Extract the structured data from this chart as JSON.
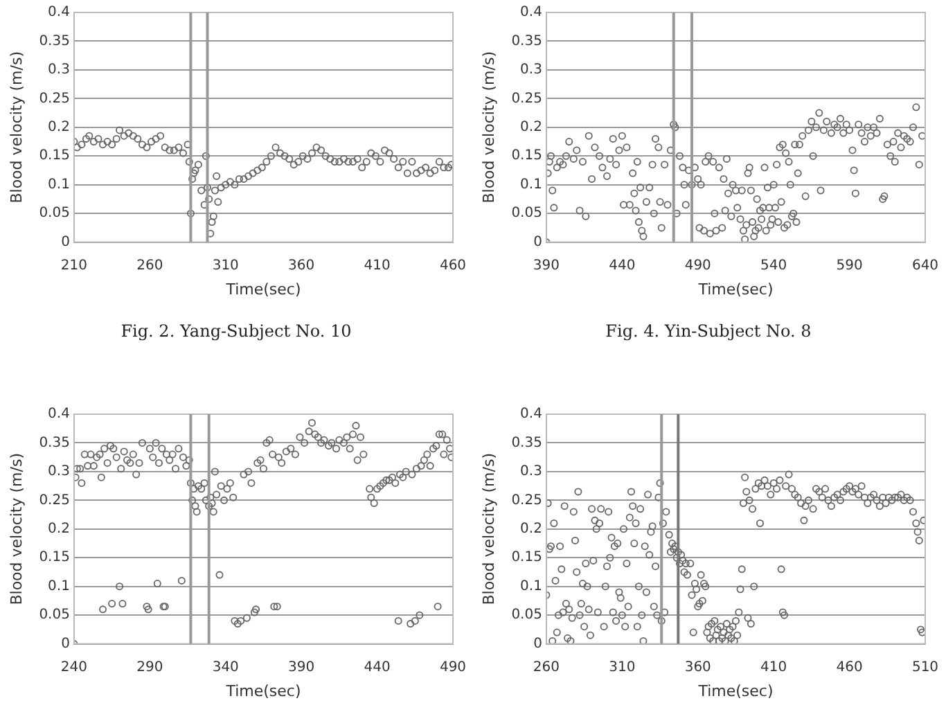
{
  "chart_data": [
    {
      "type": "scatter",
      "title": "Fig. 2. Yang-Subject No. 10",
      "xlabel": "Time(sec)",
      "ylabel": "Blood velocity (m/s)",
      "xlim": [
        210,
        460
      ],
      "xticks": [
        210,
        260,
        310,
        360,
        410,
        460
      ],
      "ylim": [
        0,
        0.4
      ],
      "yticks": [
        0,
        0.05,
        0.1,
        0.15,
        0.2,
        0.25,
        0.3,
        0.35,
        0.4
      ],
      "grid": "y",
      "marker": "circle",
      "color": "#666666",
      "ref_lines": [
        {
          "axis": "x",
          "value": 287,
          "color": "#999999"
        },
        {
          "axis": "x",
          "value": 298,
          "color": "#999999"
        }
      ],
      "x": [
        210,
        212,
        215,
        218,
        220,
        223,
        226,
        229,
        232,
        235,
        238,
        240,
        243,
        246,
        249,
        252,
        255,
        258,
        261,
        264,
        267,
        270,
        273,
        276,
        279,
        282,
        285,
        286,
        287,
        288,
        289,
        290,
        292,
        294,
        296,
        297,
        298,
        299,
        300,
        301,
        302,
        303,
        304,
        305,
        307,
        310,
        313,
        316,
        319,
        322,
        325,
        328,
        331,
        334,
        337,
        340,
        343,
        346,
        349,
        352,
        355,
        358,
        361,
        364,
        367,
        370,
        373,
        376,
        379,
        382,
        385,
        388,
        391,
        394,
        397,
        400,
        403,
        406,
        409,
        412,
        415,
        418,
        421,
        424,
        427,
        430,
        433,
        436,
        439,
        442,
        445,
        448,
        451,
        454,
        457,
        459
      ],
      "values": [
        0.175,
        0.165,
        0.17,
        0.18,
        0.185,
        0.175,
        0.18,
        0.17,
        0.175,
        0.17,
        0.18,
        0.195,
        0.185,
        0.19,
        0.185,
        0.18,
        0.17,
        0.165,
        0.175,
        0.18,
        0.185,
        0.165,
        0.16,
        0.16,
        0.165,
        0.155,
        0.17,
        0.14,
        0.05,
        0.11,
        0.12,
        0.125,
        0.135,
        0.09,
        0.065,
        0.15,
        0.095,
        0.075,
        0.015,
        0.035,
        0.045,
        0.09,
        0.115,
        0.07,
        0.095,
        0.1,
        0.105,
        0.1,
        0.11,
        0.11,
        0.115,
        0.12,
        0.125,
        0.13,
        0.14,
        0.15,
        0.165,
        0.155,
        0.15,
        0.145,
        0.135,
        0.14,
        0.15,
        0.145,
        0.155,
        0.165,
        0.16,
        0.15,
        0.145,
        0.14,
        0.14,
        0.145,
        0.14,
        0.14,
        0.145,
        0.13,
        0.14,
        0.155,
        0.15,
        0.14,
        0.16,
        0.155,
        0.145,
        0.13,
        0.14,
        0.12,
        0.14,
        0.12,
        0.125,
        0.13,
        0.12,
        0.125,
        0.14,
        0.13,
        0.13,
        0.135
      ]
    },
    {
      "type": "scatter",
      "title": "Fig. 4. Yin-Subject No. 8",
      "xlabel": "Time(sec)",
      "ylabel": "Blood velocity (m/s)",
      "xlim": [
        390,
        640
      ],
      "xticks": [
        390,
        440,
        490,
        540,
        590,
        640
      ],
      "ylim": [
        0,
        0.4
      ],
      "yticks": [
        0,
        0.05,
        0.1,
        0.15,
        0.2,
        0.25,
        0.3,
        0.35,
        0.4
      ],
      "grid": "y",
      "marker": "circle",
      "color": "#666666",
      "ref_lines": [
        {
          "axis": "x",
          "value": 474,
          "color": "#999999"
        },
        {
          "axis": "x",
          "value": 486,
          "color": "#999999"
        }
      ],
      "x": [
        390,
        391,
        392,
        393,
        394,
        395,
        397,
        399,
        401,
        403,
        405,
        408,
        410,
        412,
        414,
        416,
        418,
        420,
        422,
        425,
        427,
        430,
        432,
        434,
        436,
        438,
        440,
        441,
        443,
        445,
        447,
        448,
        449,
        450,
        451,
        452,
        453,
        454,
        456,
        458,
        460,
        461,
        462,
        464,
        465,
        466,
        468,
        470,
        472,
        474,
        475,
        476,
        478,
        480,
        481,
        482,
        484,
        486,
        488,
        490,
        491,
        492,
        494,
        495,
        497,
        498,
        500,
        501,
        502,
        504,
        506,
        507,
        508,
        509,
        510,
        512,
        513,
        515,
        516,
        518,
        519,
        520,
        521,
        522,
        523,
        524,
        525,
        526,
        527,
        528,
        529,
        530,
        531,
        532,
        533,
        534,
        535,
        536,
        537,
        538,
        539,
        540,
        541,
        542,
        543,
        544,
        545,
        546,
        547,
        548,
        549,
        550,
        551,
        552,
        553,
        554,
        555,
        556,
        557,
        559,
        561,
        563,
        565,
        566,
        568,
        570,
        571,
        573,
        575,
        578,
        580,
        582,
        584,
        586,
        588,
        590,
        592,
        593,
        594,
        596,
        598,
        600,
        602,
        604,
        606,
        608,
        610,
        612,
        613,
        615,
        617,
        619,
        620,
        622,
        624,
        626,
        628,
        630,
        632,
        634,
        636,
        638
      ],
      "values": [
        0.0,
        0.12,
        0.14,
        0.15,
        0.09,
        0.06,
        0.13,
        0.14,
        0.135,
        0.15,
        0.175,
        0.145,
        0.16,
        0.055,
        0.14,
        0.045,
        0.185,
        0.11,
        0.165,
        0.15,
        0.13,
        0.115,
        0.145,
        0.18,
        0.135,
        0.16,
        0.185,
        0.065,
        0.165,
        0.065,
        0.12,
        0.085,
        0.055,
        0.14,
        0.035,
        0.095,
        0.02,
        0.01,
        0.07,
        0.095,
        0.135,
        0.05,
        0.18,
        0.165,
        0.07,
        0.025,
        0.135,
        0.065,
        0.16,
        0.205,
        0.2,
        0.05,
        0.15,
        0.13,
        0.1,
        0.065,
        0.125,
        0.1,
        0.13,
        0.11,
        0.025,
        0.1,
        0.02,
        0.14,
        0.15,
        0.015,
        0.14,
        0.05,
        0.02,
        0.13,
        0.025,
        0.11,
        0.055,
        0.145,
        0.085,
        0.045,
        0.1,
        0.09,
        0.06,
        0.04,
        0.09,
        0.02,
        0.005,
        0.03,
        0.12,
        0.13,
        0.09,
        0.035,
        0.01,
        0.02,
        0.075,
        0.025,
        0.055,
        0.04,
        0.06,
        0.13,
        0.02,
        0.095,
        0.06,
        0.03,
        0.04,
        0.1,
        0.06,
        0.135,
        0.035,
        0.165,
        0.07,
        0.17,
        0.025,
        0.155,
        0.03,
        0.14,
        0.1,
        0.045,
        0.05,
        0.17,
        0.035,
        0.12,
        0.17,
        0.185,
        0.08,
        0.195,
        0.21,
        0.15,
        0.2,
        0.225,
        0.09,
        0.195,
        0.21,
        0.19,
        0.205,
        0.2,
        0.215,
        0.19,
        0.205,
        0.195,
        0.16,
        0.125,
        0.085,
        0.205,
        0.19,
        0.175,
        0.2,
        0.185,
        0.2,
        0.19,
        0.215,
        0.075,
        0.08,
        0.17,
        0.15,
        0.175,
        0.14,
        0.19,
        0.165,
        0.185,
        0.18,
        0.175,
        0.2,
        0.235,
        0.135,
        0.185
      ]
    },
    {
      "type": "scatter",
      "xlabel": "Time(sec)",
      "ylabel": "Blood velocity (m/s)",
      "xlim": [
        240,
        490
      ],
      "xticks": [
        240,
        290,
        340,
        390,
        440,
        490
      ],
      "ylim": [
        0,
        0.4
      ],
      "yticks": [
        0,
        0.05,
        0.1,
        0.15,
        0.2,
        0.25,
        0.3,
        0.35,
        0.4
      ],
      "grid": "y",
      "marker": "circle",
      "color": "#666666",
      "ref_lines": [
        {
          "axis": "x",
          "value": 317,
          "color": "#999999"
        },
        {
          "axis": "x",
          "value": 329,
          "color": "#999999"
        }
      ],
      "x": [
        240,
        241,
        242,
        244,
        245,
        247,
        249,
        251,
        253,
        255,
        257,
        258,
        259,
        260,
        262,
        264,
        265,
        266,
        268,
        270,
        271,
        272,
        273,
        275,
        277,
        279,
        281,
        283,
        285,
        288,
        289,
        290,
        292,
        294,
        295,
        296,
        298,
        299,
        300,
        301,
        303,
        305,
        307,
        309,
        311,
        312,
        314,
        316,
        317,
        318,
        319,
        320,
        321,
        322,
        324,
        326,
        327,
        329,
        330,
        331,
        332,
        333,
        334,
        336,
        337,
        339,
        341,
        343,
        345,
        346,
        348,
        350,
        352,
        354,
        355,
        357,
        359,
        360,
        361,
        363,
        365,
        367,
        369,
        371,
        372,
        374,
        375,
        377,
        380,
        383,
        386,
        389,
        392,
        395,
        397,
        399,
        401,
        403,
        405,
        408,
        410,
        413,
        415,
        418,
        420,
        422,
        424,
        426,
        427,
        429,
        431,
        435,
        436,
        438,
        440,
        442,
        444,
        446,
        448,
        450,
        452,
        454,
        455,
        457,
        459,
        462,
        463,
        465,
        466,
        468,
        469,
        471,
        473,
        475,
        477,
        479,
        480,
        481,
        483,
        484,
        486,
        488,
        489
      ],
      "values": [
        0,
        0.29,
        0.305,
        0.305,
        0.28,
        0.33,
        0.31,
        0.33,
        0.31,
        0.325,
        0.33,
        0.29,
        0.06,
        0.34,
        0.315,
        0.345,
        0.07,
        0.34,
        0.325,
        0.1,
        0.305,
        0.07,
        0.335,
        0.32,
        0.315,
        0.33,
        0.295,
        0.315,
        0.35,
        0.065,
        0.06,
        0.34,
        0.325,
        0.35,
        0.105,
        0.315,
        0.34,
        0.065,
        0.065,
        0.33,
        0.32,
        0.33,
        0.305,
        0.34,
        0.11,
        0.325,
        0.31,
        0.32,
        0.28,
        0.25,
        0.27,
        0.24,
        0.23,
        0.275,
        0.27,
        0.28,
        0.25,
        0.24,
        0.255,
        0.245,
        0.23,
        0.3,
        0.26,
        0.12,
        0.275,
        0.25,
        0.27,
        0.28,
        0.255,
        0.04,
        0.035,
        0.04,
        0.295,
        0.045,
        0.3,
        0.28,
        0.055,
        0.06,
        0.315,
        0.32,
        0.305,
        0.35,
        0.355,
        0.33,
        0.065,
        0.065,
        0.325,
        0.315,
        0.335,
        0.34,
        0.33,
        0.36,
        0.35,
        0.37,
        0.385,
        0.365,
        0.36,
        0.35,
        0.355,
        0.345,
        0.35,
        0.34,
        0.355,
        0.35,
        0.36,
        0.34,
        0.365,
        0.38,
        0.32,
        0.36,
        0.33,
        0.27,
        0.255,
        0.245,
        0.27,
        0.275,
        0.28,
        0.285,
        0.285,
        0.29,
        0.28,
        0.04,
        0.295,
        0.29,
        0.3,
        0.035,
        0.295,
        0.04,
        0.305,
        0.05,
        0.31,
        0.32,
        0.33,
        0.31,
        0.34,
        0.345,
        0.065,
        0.365,
        0.365,
        0.33,
        0.355,
        0.34,
        0.325
      ]
    },
    {
      "type": "scatter",
      "xlabel": "Time(sec)",
      "ylabel": "Blood velocity (m/s)",
      "xlim": [
        260,
        510
      ],
      "xticks": [
        260,
        310,
        360,
        410,
        460,
        510
      ],
      "ylim": [
        0,
        0.4
      ],
      "yticks": [
        0,
        0.05,
        0.1,
        0.15,
        0.2,
        0.25,
        0.3,
        0.35,
        0.4
      ],
      "grid": "y",
      "marker": "circle",
      "color": "#666666",
      "ref_lines": [
        {
          "axis": "x",
          "value": 336,
          "color": "#999999"
        },
        {
          "axis": "x",
          "value": 347,
          "color": "#777777"
        }
      ],
      "x": [
        260,
        261,
        262,
        263,
        264,
        265,
        266,
        267,
        268,
        269,
        270,
        271,
        272,
        273,
        274,
        275,
        276,
        277,
        278,
        279,
        280,
        281,
        282,
        283,
        284,
        285,
        286,
        287,
        288,
        289,
        290,
        291,
        292,
        293,
        294,
        295,
        296,
        298,
        299,
        300,
        301,
        302,
        303,
        304,
        305,
        306,
        307,
        308,
        309,
        310,
        311,
        312,
        313,
        314,
        315,
        316,
        317,
        318,
        319,
        320,
        321,
        322,
        323,
        324,
        325,
        326,
        327,
        328,
        329,
        330,
        331,
        332,
        333,
        334,
        335,
        336,
        337,
        338,
        339,
        341,
        342,
        343,
        344,
        345,
        346,
        347,
        348,
        349,
        350,
        351,
        352,
        353,
        355,
        356,
        357,
        358,
        359,
        360,
        361,
        362,
        363,
        364,
        365,
        366,
        367,
        368,
        369,
        370,
        371,
        372,
        373,
        374,
        375,
        376,
        377,
        378,
        379,
        380,
        381,
        382,
        383,
        384,
        385,
        386,
        387,
        388,
        389,
        390,
        391,
        392,
        393,
        394,
        395,
        396,
        397,
        398,
        400,
        401,
        402,
        404,
        406,
        408,
        410,
        412,
        414,
        415,
        416,
        417,
        418,
        420,
        422,
        424,
        426,
        428,
        430,
        431,
        433,
        436,
        438,
        440,
        442,
        444,
        446,
        448,
        450,
        452,
        454,
        456,
        458,
        460,
        462,
        464,
        466,
        468,
        470,
        472,
        474,
        476,
        478,
        480,
        482,
        484,
        486,
        488,
        490,
        492,
        494,
        496,
        498,
        500,
        502,
        504,
        505,
        506,
        507,
        508,
        509
      ],
      "values": [
        0.085,
        0.245,
        0.165,
        0.17,
        0.005,
        0.21,
        0.11,
        0.02,
        0.05,
        0.17,
        0.13,
        0.055,
        0.24,
        0.07,
        0.01,
        0.06,
        0.005,
        0.045,
        0.23,
        0.18,
        0.125,
        0.265,
        0.05,
        0.07,
        0.105,
        0.03,
        0.14,
        0.1,
        0.06,
        0.015,
        0.235,
        0.145,
        0.215,
        0.2,
        0.055,
        0.21,
        0.235,
        0.03,
        0.1,
        0.135,
        0.23,
        0.15,
        0.185,
        0.055,
        0.17,
        0.04,
        0.175,
        0.09,
        0.08,
        0.05,
        0.2,
        0.03,
        0.14,
        0.065,
        0.22,
        0.265,
        0.24,
        0.175,
        0.21,
        0.03,
        0.1,
        0.235,
        0.05,
        0.005,
        0.17,
        0.09,
        0.26,
        0.155,
        0.195,
        0.205,
        0.065,
        0.135,
        0.05,
        0.255,
        0.28,
        0.04,
        0.21,
        0.055,
        0.23,
        0.19,
        0.16,
        0.175,
        0.165,
        0.17,
        0.15,
        0.16,
        0.14,
        0.155,
        0.145,
        0.125,
        0.14,
        0.12,
        0.14,
        0.085,
        0.02,
        0.105,
        0.095,
        0.065,
        0.07,
        0.12,
        0.075,
        0.105,
        0.1,
        0.02,
        0.03,
        0.01,
        0.035,
        0.005,
        0.04,
        0.015,
        0.025,
        0.005,
        0.03,
        0.01,
        0.02,
        0.005,
        0.035,
        0.015,
        0.025,
        0.01,
        0.03,
        0.005,
        0.04,
        0.015,
        0.055,
        0.095,
        0.13,
        0.245,
        0.29,
        0.265,
        0.045,
        0.25,
        0.035,
        0.235,
        0.1,
        0.27,
        0.28,
        0.21,
        0.275,
        0.285,
        0.275,
        0.26,
        0.28,
        0.27,
        0.285,
        0.13,
        0.055,
        0.05,
        0.275,
        0.295,
        0.27,
        0.26,
        0.255,
        0.245,
        0.215,
        0.24,
        0.25,
        0.235,
        0.27,
        0.265,
        0.255,
        0.27,
        0.25,
        0.24,
        0.255,
        0.26,
        0.25,
        0.265,
        0.27,
        0.275,
        0.265,
        0.27,
        0.26,
        0.275,
        0.255,
        0.245,
        0.255,
        0.26,
        0.25,
        0.24,
        0.255,
        0.245,
        0.255,
        0.25,
        0.255,
        0.255,
        0.26,
        0.25,
        0.255,
        0.25,
        0.23,
        0.21,
        0.195,
        0.18,
        0.025,
        0.02,
        0.215
      ]
    }
  ]
}
